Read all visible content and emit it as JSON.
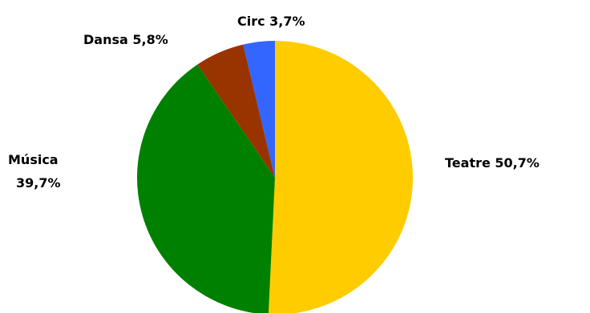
{
  "chart_data": {
    "type": "pie",
    "title": "",
    "slices": [
      {
        "name": "Teatre",
        "value": 50.7,
        "label": "Teatre 50,7%",
        "color": "#ffcc00"
      },
      {
        "name": "Música",
        "value": 39.7,
        "label_lines": [
          "Música",
          "39,7%"
        ],
        "color": "#008000"
      },
      {
        "name": "Dansa",
        "value": 5.8,
        "label": "Dansa 5,8%",
        "color": "#993300"
      },
      {
        "name": "Circ",
        "value": 3.7,
        "label": "Circ 3,7%",
        "color": "#3366ff"
      }
    ],
    "start": "12 o'clock",
    "direction": "clockwise",
    "legend": "none"
  }
}
